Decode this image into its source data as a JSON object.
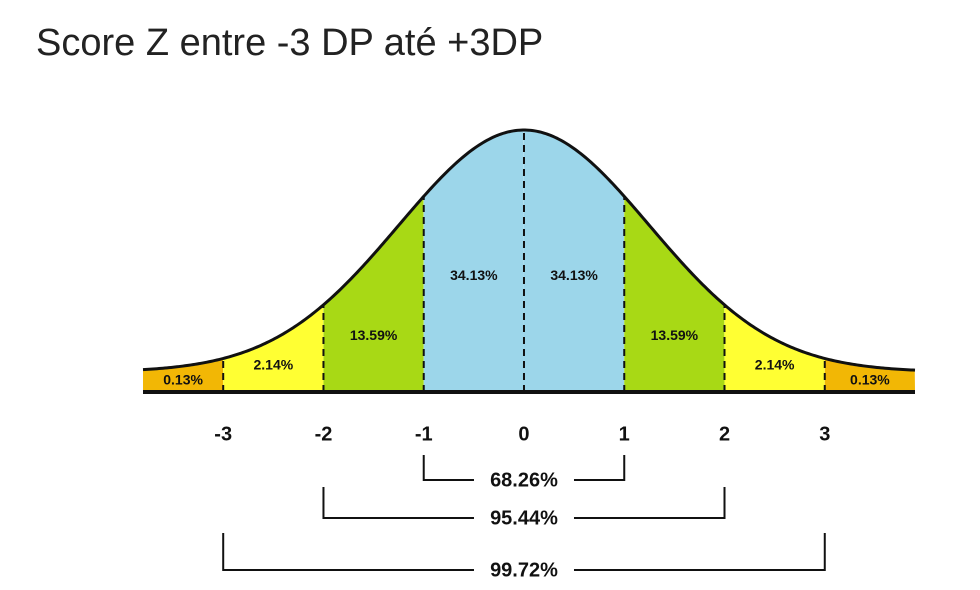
{
  "chart_data": {
    "type": "bell",
    "title": "Score Z entre -3 DP até +3DP",
    "xlim": [
      -3.8,
      3.9
    ],
    "xticks": [
      -3,
      -2,
      -1,
      0,
      1,
      2,
      3
    ],
    "values": [
      0.13,
      2.14,
      13.59,
      34.13,
      34.13,
      13.59,
      2.14,
      0.13
    ],
    "value_labels": [
      "0.13%",
      "2.14%",
      "13.59%",
      "34.13%",
      "34.13%",
      "13.59%",
      "2.14%",
      "0.13%"
    ],
    "colors": [
      "#f2b705",
      "#ffff33",
      "#a8d915",
      "#9cd6ea",
      "#9cd6ea",
      "#a8d915",
      "#ffff33",
      "#f2b705"
    ],
    "spans": {
      "from": [
        -1,
        -2,
        -3
      ],
      "to": [
        1,
        2,
        3
      ],
      "values": [
        68.26,
        95.44,
        99.72
      ],
      "value_labels": [
        "68.26%",
        "95.44%",
        "99.72%"
      ]
    }
  }
}
